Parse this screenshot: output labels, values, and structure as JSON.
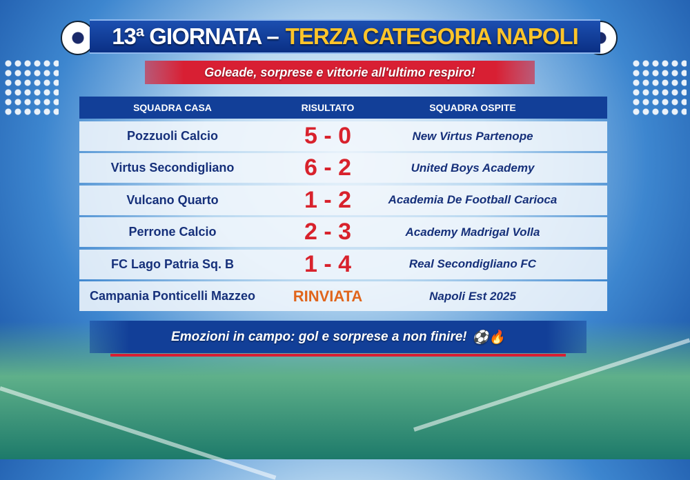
{
  "title": {
    "prefix": "13ª GIORNATA –",
    "highlight": "TERZA CATEGORIA NAPOLI",
    "icon": "soccer-ball-icon"
  },
  "subtitle": "Goleade, sorprese e vittorie all'ultimo respiro!",
  "table": {
    "headers": [
      "SQUADRA CASA",
      "RISULTATO",
      "SQUADRA OSPITE"
    ],
    "rows": [
      {
        "home": "Pozzuoli Calcio",
        "score": "5 - 0",
        "away": "New Virtus Partenope"
      },
      {
        "home": "Virtus Secondigliano",
        "score": "6 - 2",
        "away": "United Boys Academy"
      },
      {
        "home": "Vulcano Quarto",
        "score": "1 - 2",
        "away": "Academia De Football Carioca"
      },
      {
        "home": "Perrone Calcio",
        "score": "2 - 3",
        "away": "Academy Madrigal Volla"
      },
      {
        "home": "FC Lago Patria Sq. B",
        "score": "1 - 4",
        "away": "Real Secondigliano FC"
      },
      {
        "home": "Campania Ponticelli Mazzeo",
        "score": "RINVIATA",
        "away": "Napoli Est 2025"
      }
    ]
  },
  "footer": {
    "text": "Emozioni in campo: gol e sorprese a non finire!",
    "emojis": "⚽🔥"
  },
  "colors": {
    "blue": "#123f98",
    "red": "#d81f33",
    "yellow": "#ffc52a",
    "score": "#d8222c",
    "postponed": "#e0651c"
  }
}
